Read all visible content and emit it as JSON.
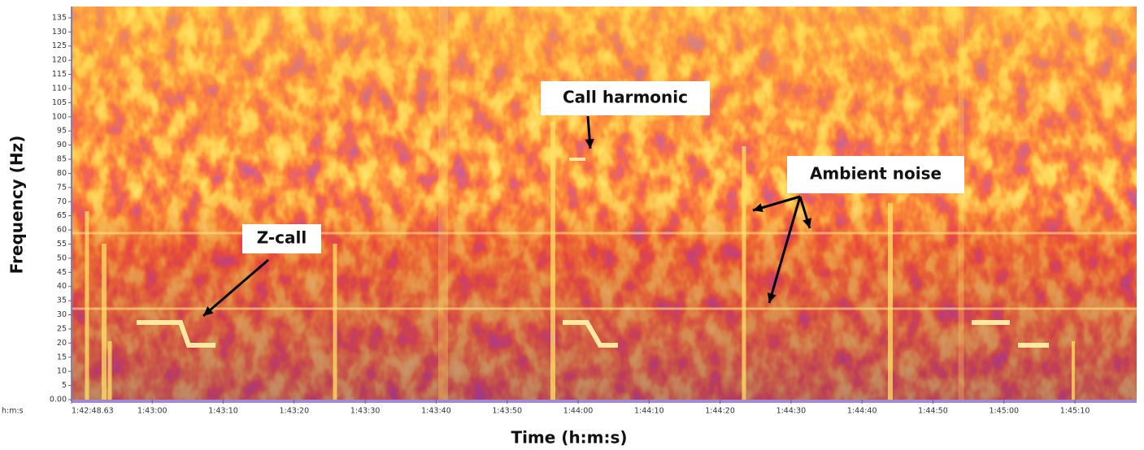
{
  "chart_data": {
    "type": "spectrogram",
    "y_label": "Frequency (Hz)",
    "x_label": "Time (h:m:s)",
    "x_unit_label": "h:m:s",
    "ylim": [
      0,
      139
    ],
    "yticks": [
      {
        "value": 0,
        "label": "0.00"
      },
      5,
      10,
      15,
      20,
      25,
      30,
      35,
      40,
      45,
      50,
      55,
      60,
      65,
      70,
      75,
      80,
      85,
      90,
      95,
      100,
      105,
      110,
      115,
      120,
      125,
      130,
      135
    ],
    "xlim": [
      6168.63,
      6318.7
    ],
    "xticks": [
      {
        "value": 6168.63,
        "label": "1:42:48.63"
      },
      {
        "value": 6180,
        "label": "1:43:00"
      },
      {
        "value": 6190,
        "label": "1:43:10"
      },
      {
        "value": 6200,
        "label": "1:43:20"
      },
      {
        "value": 6210,
        "label": "1:43:30"
      },
      {
        "value": 6220,
        "label": "1:43:40"
      },
      {
        "value": 6230,
        "label": "1:43:50"
      },
      {
        "value": 6240,
        "label": "1:44:00"
      },
      {
        "value": 6250,
        "label": "1:44:10"
      },
      {
        "value": 6260,
        "label": "1:44:20"
      },
      {
        "value": 6270,
        "label": "1:44:30"
      },
      {
        "value": 6280,
        "label": "1:44:40"
      },
      {
        "value": 6290,
        "label": "1:44:50"
      },
      {
        "value": 6300,
        "label": "1:45:00"
      },
      {
        "value": 6310,
        "label": "1:45:10"
      }
    ],
    "annotations": [
      "Z-call",
      "Call harmonic",
      "Ambient noise"
    ]
  }
}
